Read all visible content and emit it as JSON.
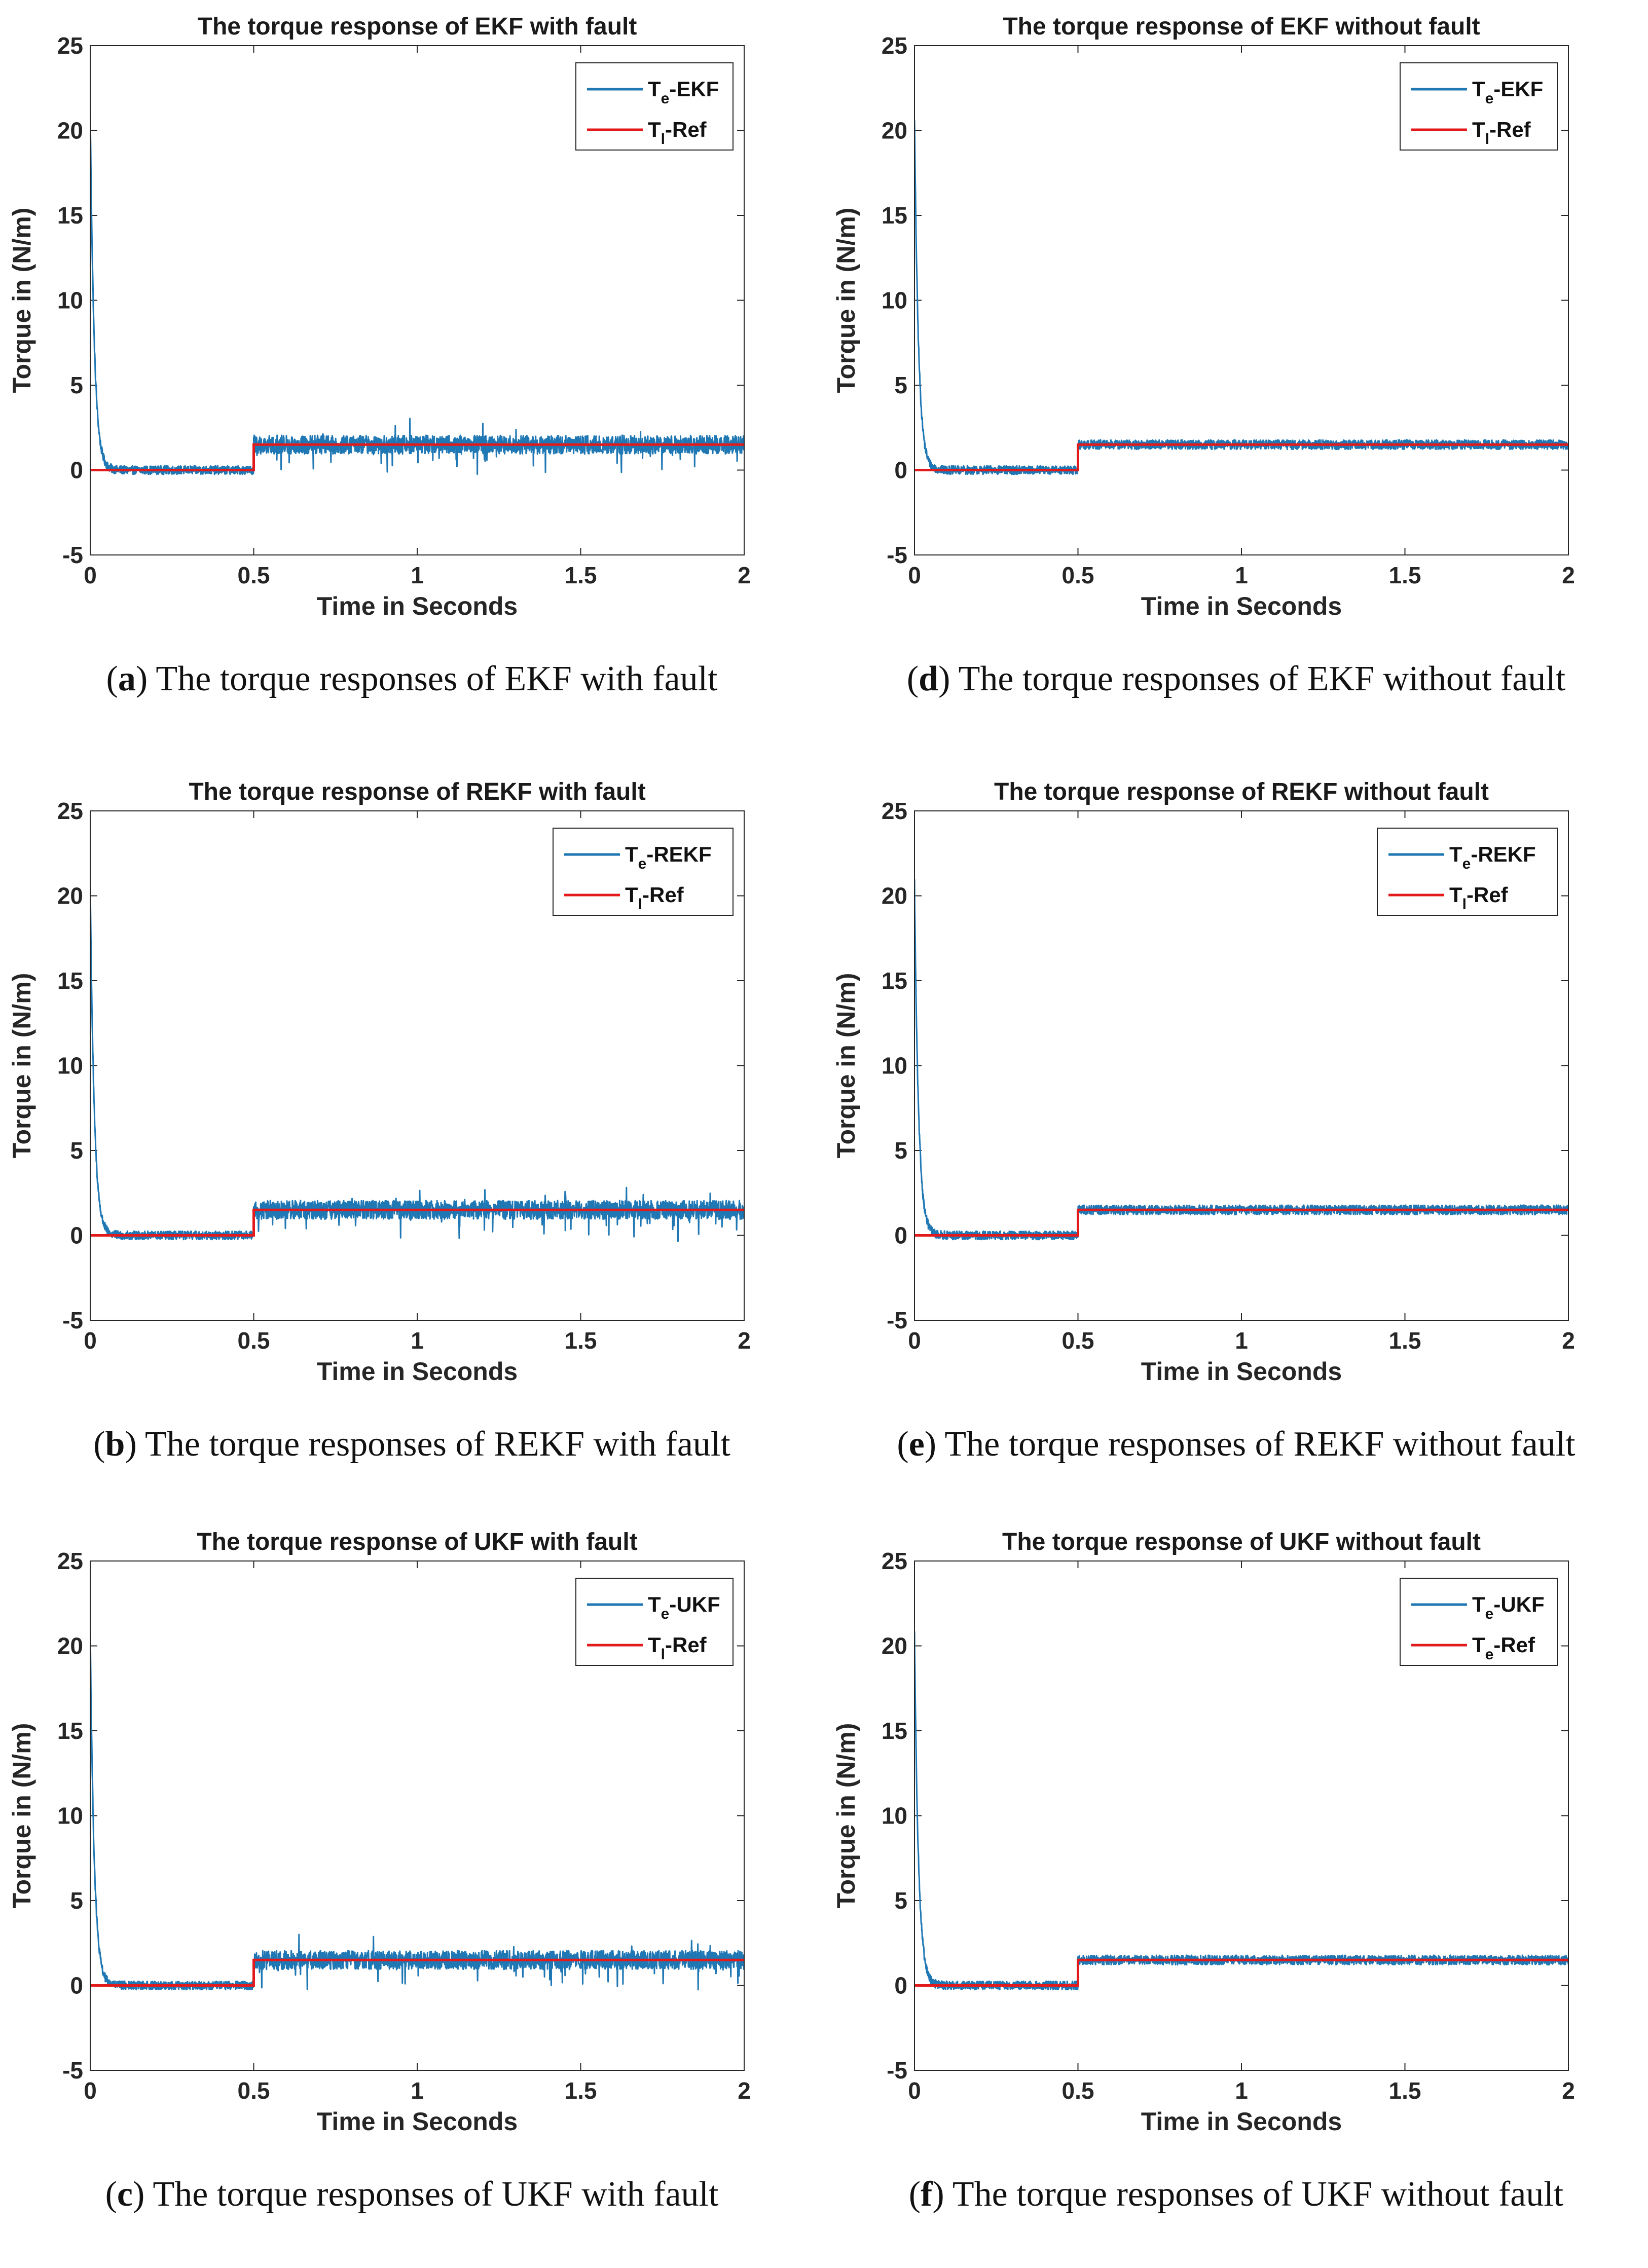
{
  "chart_data": [
    {
      "id": "a",
      "type": "line",
      "title": "The torque response of EKF with fault",
      "xlabel": "Time in Seconds",
      "ylabel": "Torque in (N/m)",
      "xlim": [
        0,
        2
      ],
      "ylim": [
        -5,
        25
      ],
      "xticks": [
        "0",
        "0.5",
        "1",
        "1.5",
        "2"
      ],
      "yticks": [
        "-5",
        "0",
        "5",
        "10",
        "15",
        "20",
        "25"
      ],
      "legend_position": "top-right",
      "caption_letter": "a",
      "caption_text": "The torque responses of EKF with fault",
      "fault": true,
      "peak": 21.3,
      "series": [
        {
          "name_base": "T",
          "name_sub": "e",
          "name_suffix": "-EKF",
          "color": "#1f77b4",
          "kind": "estimate",
          "peak": 21.3,
          "base_level": 0,
          "step_time": 0.5,
          "step_level": 1.5
        },
        {
          "name_base": "T",
          "name_sub": "l",
          "name_suffix": "-Ref",
          "color": "#e31a1c",
          "kind": "reference",
          "x": [
            0,
            0.5,
            0.5,
            2
          ],
          "y": [
            0,
            0,
            1.5,
            1.5
          ]
        }
      ]
    },
    {
      "id": "d",
      "type": "line",
      "title": "The torque response of EKF without fault",
      "xlabel": "Time in Seconds",
      "ylabel": "Torque in (N/m)",
      "xlim": [
        0,
        2
      ],
      "ylim": [
        -5,
        25
      ],
      "xticks": [
        "0",
        "0.5",
        "1",
        "1.5",
        "2"
      ],
      "yticks": [
        "-5",
        "0",
        "5",
        "10",
        "15",
        "20",
        "25"
      ],
      "legend_position": "top-right",
      "caption_letter": "d",
      "caption_text": "The torque responses of EKF without fault",
      "fault": false,
      "peak": 20.8,
      "series": [
        {
          "name_base": "T",
          "name_sub": "e",
          "name_suffix": "-EKF",
          "color": "#1f77b4",
          "kind": "estimate",
          "peak": 20.8,
          "base_level": 0,
          "step_time": 0.5,
          "step_level": 1.5
        },
        {
          "name_base": "T",
          "name_sub": "l",
          "name_suffix": "-Ref",
          "color": "#e31a1c",
          "kind": "reference",
          "x": [
            0,
            0.5,
            0.5,
            2
          ],
          "y": [
            0,
            0,
            1.5,
            1.5
          ]
        }
      ]
    },
    {
      "id": "b",
      "type": "line",
      "title": "The torque response of REKF with fault",
      "xlabel": "Time in Seconds",
      "ylabel": "Torque in (N/m)",
      "xlim": [
        0,
        2
      ],
      "ylim": [
        -5,
        25
      ],
      "xticks": [
        "0",
        "0.5",
        "1",
        "1.5",
        "2"
      ],
      "yticks": [
        "-5",
        "0",
        "5",
        "10",
        "15",
        "20",
        "25"
      ],
      "legend_position": "top-right",
      "caption_letter": "b",
      "caption_text": "The torque responses of REKF with fault",
      "fault": true,
      "peak": 20.8,
      "series": [
        {
          "name_base": "T",
          "name_sub": "e",
          "name_suffix": "-REKF",
          "color": "#1f77b4",
          "kind": "estimate",
          "peak": 20.8,
          "base_level": 0,
          "step_time": 0.5,
          "step_level": 1.5
        },
        {
          "name_base": "T",
          "name_sub": "l",
          "name_suffix": "-Ref",
          "color": "#e31a1c",
          "kind": "reference",
          "x": [
            0,
            0.5,
            0.5,
            2
          ],
          "y": [
            0,
            0,
            1.5,
            1.5
          ]
        }
      ]
    },
    {
      "id": "e",
      "type": "line",
      "title": "The torque response of REKF without fault",
      "xlabel": "Time in Seconds",
      "ylabel": "Torque in (N/m)",
      "xlim": [
        0,
        2
      ],
      "ylim": [
        -5,
        25
      ],
      "xticks": [
        "0",
        "0.5",
        "1",
        "1.5",
        "2"
      ],
      "yticks": [
        "-5",
        "0",
        "5",
        "10",
        "15",
        "20",
        "25"
      ],
      "legend_position": "top-right",
      "caption_letter": "e",
      "caption_text": "The torque responses of REKF without fault",
      "fault": false,
      "peak": 20.8,
      "series": [
        {
          "name_base": "T",
          "name_sub": "e",
          "name_suffix": "-REKF",
          "color": "#1f77b4",
          "kind": "estimate",
          "peak": 20.8,
          "base_level": 0,
          "step_time": 0.5,
          "step_level": 1.5
        },
        {
          "name_base": "T",
          "name_sub": "l",
          "name_suffix": "-Ref",
          "color": "#e31a1c",
          "kind": "reference",
          "x": [
            0,
            0.5,
            0.5,
            2
          ],
          "y": [
            0,
            0,
            1.5,
            1.5
          ]
        }
      ]
    },
    {
      "id": "c",
      "type": "line",
      "title": "The torque response of UKF with fault",
      "xlabel": "Time in Seconds",
      "ylabel": "Torque in (N/m)",
      "xlim": [
        0,
        2
      ],
      "ylim": [
        -5,
        25
      ],
      "xticks": [
        "0",
        "0.5",
        "1",
        "1.5",
        "2"
      ],
      "yticks": [
        "-5",
        "0",
        "5",
        "10",
        "15",
        "20",
        "25"
      ],
      "legend_position": "top-right",
      "caption_letter": "c",
      "caption_text": "The torque responses of UKF with fault",
      "fault": true,
      "peak": 21.0,
      "series": [
        {
          "name_base": "T",
          "name_sub": "e",
          "name_suffix": "-UKF",
          "color": "#1f77b4",
          "kind": "estimate",
          "peak": 21.0,
          "base_level": 0,
          "step_time": 0.5,
          "step_level": 1.5
        },
        {
          "name_base": "T",
          "name_sub": "l",
          "name_suffix": "-Ref",
          "color": "#e31a1c",
          "kind": "reference",
          "x": [
            0,
            0.5,
            0.5,
            2
          ],
          "y": [
            0,
            0,
            1.5,
            1.5
          ]
        }
      ]
    },
    {
      "id": "f",
      "type": "line",
      "title": "The torque response of UKF without fault",
      "xlabel": "Time in Seconds",
      "ylabel": "Torque in (N/m)",
      "xlim": [
        0,
        2
      ],
      "ylim": [
        -5,
        25
      ],
      "xticks": [
        "0",
        "0.5",
        "1",
        "1.5",
        "2"
      ],
      "yticks": [
        "-5",
        "0",
        "5",
        "10",
        "15",
        "20",
        "25"
      ],
      "legend_position": "top-right",
      "caption_letter": "f",
      "caption_text": "The torque responses of UKF without fault",
      "fault": false,
      "peak": 20.8,
      "series": [
        {
          "name_base": "T",
          "name_sub": "e",
          "name_suffix": "-UKF",
          "color": "#1f77b4",
          "kind": "estimate",
          "peak": 20.8,
          "base_level": 0,
          "step_time": 0.5,
          "step_level": 1.5
        },
        {
          "name_base": "T",
          "name_sub": "e",
          "name_suffix": "-Ref",
          "color": "#e31a1c",
          "kind": "reference",
          "x": [
            0,
            0.5,
            0.5,
            2
          ],
          "y": [
            0,
            0,
            1.5,
            1.5
          ]
        }
      ]
    }
  ]
}
